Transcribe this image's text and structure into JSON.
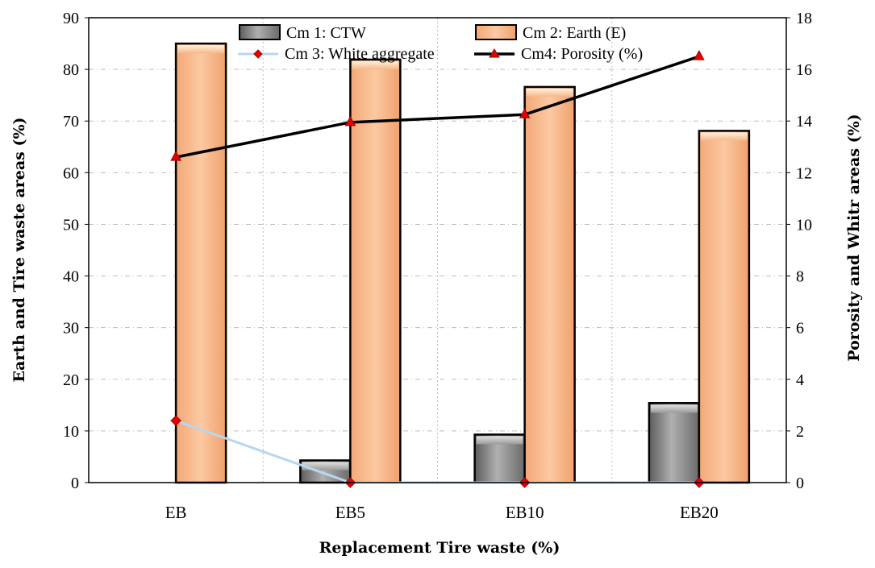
{
  "chart_data": {
    "type": "bar",
    "categories": [
      "EB",
      "EB5",
      "EB10",
      "EB20"
    ],
    "xlabel": "Replacement Tire waste (%)",
    "ylabel": "Earth and Tire waste areas (%)",
    "y2label": "Porosity and Whitr areas (%)",
    "ylim": [
      0,
      90
    ],
    "y2lim": [
      0,
      18
    ],
    "yticks": [
      "0",
      "10",
      "20",
      "30",
      "40",
      "50",
      "60",
      "70",
      "80",
      "90"
    ],
    "y2ticks": [
      "0",
      "2",
      "4",
      "6",
      "8",
      "10",
      "12",
      "14",
      "16",
      "18"
    ],
    "grid": true,
    "legend_position": "top",
    "series": [
      {
        "name": "Cm 1: CTW",
        "kind": "bar",
        "axis": "left",
        "color": "#909090",
        "values": [
          0,
          4.3,
          9.3,
          15.4
        ]
      },
      {
        "name": "Cm 2: Earth (E)",
        "kind": "bar",
        "axis": "left",
        "color": "#f7b98a",
        "values": [
          85,
          81.9,
          76.6,
          68.1
        ]
      },
      {
        "name": "Cm 3: White aggregate",
        "kind": "line",
        "axis": "right",
        "color": "#b7d7ee",
        "marker": "diamond",
        "marker_color": "#e60000",
        "values": [
          2.4,
          0,
          0,
          0
        ]
      },
      {
        "name": "Cm4: Porosity (%)",
        "kind": "line",
        "axis": "right",
        "color": "#000000",
        "marker": "triangle",
        "marker_color": "#e60000",
        "values": [
          12.6,
          13.95,
          14.25,
          16.5
        ]
      }
    ]
  }
}
